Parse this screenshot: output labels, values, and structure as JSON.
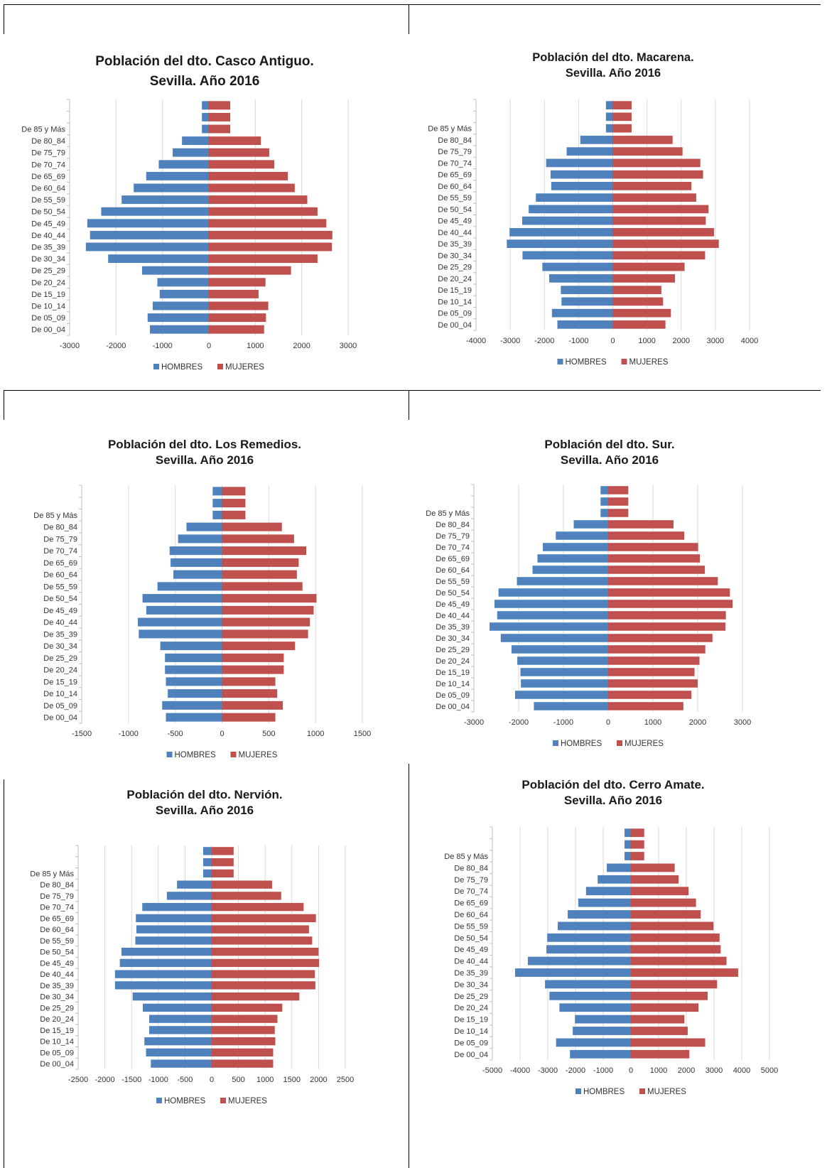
{
  "colors": {
    "hombres": "#4F81BD",
    "mujeres": "#C0504D",
    "grid": "#D9D9D9",
    "axis": "#BFBFBF"
  },
  "chart_data": [
    {
      "type": "bar",
      "orientation": "horizontal-diverging",
      "title_lines": [
        "Población del dto. Casco Antiguo.",
        "Sevilla. Año 2016"
      ],
      "categories": [
        "",
        "",
        "De 85 y Más",
        "De 80_84",
        "De 75_79",
        "De 70_74",
        "De 65_69",
        "De 60_64",
        "De 55_59",
        "De 50_54",
        "De 45_49",
        "De 40_44",
        "De 35_39",
        "De 30_34",
        "De 25_29",
        "De 20_24",
        "De 15_19",
        "De 10_14",
        "De 05_09",
        "De 00_04"
      ],
      "series": [
        {
          "name": "HOMBRES",
          "values": [
            -150,
            -150,
            -150,
            -580,
            -780,
            -1080,
            -1350,
            -1620,
            -1880,
            -2320,
            -2620,
            -2560,
            -2650,
            -2170,
            -1440,
            -1110,
            -1060,
            -1210,
            -1320,
            -1270
          ]
        },
        {
          "name": "MUJERES",
          "values": [
            460,
            460,
            460,
            1120,
            1300,
            1410,
            1700,
            1850,
            2120,
            2340,
            2530,
            2660,
            2650,
            2340,
            1770,
            1220,
            1070,
            1280,
            1230,
            1190
          ]
        }
      ],
      "xlim": [
        -3000,
        3000
      ],
      "xticks": [
        "-3000",
        "-2000",
        "-1000",
        "0",
        "1000",
        "2000",
        "3000"
      ],
      "legend": "bottom"
    },
    {
      "type": "bar",
      "orientation": "horizontal-diverging",
      "title_lines": [
        "Población del dto. Macarena.",
        "Sevilla. Año 2016"
      ],
      "categories": [
        "",
        "",
        "De 85 y Más",
        "De 80_84",
        "De 75_79",
        "De 70_74",
        "De 65_69",
        "De 60_64",
        "De 55_59",
        "De 50_54",
        "De 45_49",
        "De 40_44",
        "De 35_39",
        "De 30_34",
        "De 25_29",
        "De 20_24",
        "De 15_19",
        "De 10_14",
        "De 05_09",
        "De 00_04"
      ],
      "series": [
        {
          "name": "HOMBRES",
          "values": [
            -200,
            -200,
            -200,
            -950,
            -1350,
            -1950,
            -1820,
            -1800,
            -2250,
            -2460,
            -2650,
            -3020,
            -3100,
            -2640,
            -2060,
            -1860,
            -1520,
            -1500,
            -1780,
            -1620
          ]
        },
        {
          "name": "MUJERES",
          "values": [
            550,
            550,
            550,
            1750,
            2040,
            2560,
            2640,
            2300,
            2440,
            2800,
            2720,
            2960,
            3100,
            2700,
            2100,
            1820,
            1420,
            1470,
            1700,
            1540
          ]
        }
      ],
      "xlim": [
        -4000,
        4000
      ],
      "xticks": [
        "-4000",
        "-3000",
        "-2000",
        "-1000",
        "0",
        "1000",
        "2000",
        "3000",
        "4000"
      ],
      "legend": "bottom"
    },
    {
      "type": "bar",
      "orientation": "horizontal-diverging",
      "title_lines": [
        "Población del dto. Los Remedios.",
        "Sevilla. Año 2016"
      ],
      "categories": [
        "",
        "",
        "De 85 y Más",
        "De 80_84",
        "De 75_79",
        "De 70_74",
        "De 65_69",
        "De 60_64",
        "De 55_59",
        "De 50_54",
        "De 45_49",
        "De 40_44",
        "De 35_39",
        "De 30_34",
        "De 25_29",
        "De 20_24",
        "De 15_19",
        "De 10_14",
        "De 05_09",
        "De 00_04"
      ],
      "series": [
        {
          "name": "HOMBRES",
          "values": [
            -100,
            -100,
            -100,
            -380,
            -470,
            -560,
            -550,
            -520,
            -690,
            -850,
            -810,
            -900,
            -890,
            -660,
            -610,
            -610,
            -600,
            -580,
            -640,
            -600
          ]
        },
        {
          "name": "MUJERES",
          "values": [
            250,
            250,
            250,
            640,
            770,
            900,
            820,
            800,
            860,
            1010,
            980,
            940,
            920,
            780,
            660,
            660,
            570,
            590,
            650,
            570
          ]
        }
      ],
      "xlim": [
        -1500,
        1500
      ],
      "xticks": [
        "-1500",
        "-1000",
        "-500",
        "0",
        "500",
        "1000",
        "1500"
      ],
      "legend": "bottom"
    },
    {
      "type": "bar",
      "orientation": "horizontal-diverging",
      "title_lines": [
        "Población del dto. Sur.",
        "Sevilla. Año 2016"
      ],
      "categories": [
        "",
        "",
        "De 85 y Más",
        "De 80_84",
        "De 75_79",
        "De 70_74",
        "De 65_69",
        "De 60_64",
        "De 55_59",
        "De 50_54",
        "De 45_49",
        "De 40_44",
        "De 35_39",
        "De 30_34",
        "De 25_29",
        "De 20_24",
        "De 15_19",
        "De 10_14",
        "De 05_09",
        "De 00_04"
      ],
      "series": [
        {
          "name": "HOMBRES",
          "values": [
            -170,
            -170,
            -170,
            -770,
            -1170,
            -1460,
            -1580,
            -1690,
            -2040,
            -2450,
            -2540,
            -2480,
            -2650,
            -2400,
            -2160,
            -2030,
            -1960,
            -1950,
            -2080,
            -1660
          ]
        },
        {
          "name": "MUJERES",
          "values": [
            450,
            450,
            450,
            1460,
            1700,
            2010,
            2050,
            2160,
            2450,
            2720,
            2780,
            2630,
            2620,
            2330,
            2170,
            2040,
            1930,
            2000,
            1860,
            1680
          ]
        }
      ],
      "xlim": [
        -3000,
        3000
      ],
      "xticks": [
        "-3000",
        "-2000",
        "-1000",
        "0",
        "1000",
        "2000",
        "3000"
      ],
      "legend": "bottom"
    },
    {
      "type": "bar",
      "orientation": "horizontal-diverging",
      "title_lines": [
        "Población del dto. Nervión.",
        "Sevilla. Año 2016"
      ],
      "categories": [
        "",
        "",
        "De 85 y Más",
        "De 80_84",
        "De 75_79",
        "De 70_74",
        "De 65_69",
        "De 60_64",
        "De 55_59",
        "De 50_54",
        "De 45_49",
        "De 40_44",
        "De 35_39",
        "De 30_34",
        "De 25_29",
        "De 20_24",
        "De 15_19",
        "De 10_14",
        "De 05_09",
        "De 00_04"
      ],
      "series": [
        {
          "name": "HOMBRES",
          "values": [
            -160,
            -160,
            -160,
            -650,
            -840,
            -1300,
            -1420,
            -1410,
            -1430,
            -1690,
            -1720,
            -1810,
            -1810,
            -1480,
            -1290,
            -1170,
            -1170,
            -1260,
            -1230,
            -1140
          ]
        },
        {
          "name": "MUJERES",
          "values": [
            410,
            410,
            410,
            1130,
            1300,
            1720,
            1950,
            1820,
            1880,
            2000,
            2010,
            1930,
            1940,
            1640,
            1320,
            1230,
            1180,
            1190,
            1150,
            1150
          ]
        }
      ],
      "xlim": [
        -2500,
        2500
      ],
      "xticks": [
        "-2500",
        "-2000",
        "-1500",
        "-1000",
        "-500",
        "0",
        "500",
        "1000",
        "1500",
        "2000",
        "2500"
      ],
      "legend": "bottom"
    },
    {
      "type": "bar",
      "orientation": "horizontal-diverging",
      "title_lines": [
        "Población del dto. Cerro Amate.",
        "Sevilla. Año 2016"
      ],
      "categories": [
        "",
        "",
        "De 85 y Más",
        "De 80_84",
        "De 75_79",
        "De 70_74",
        "De 65_69",
        "De 60_64",
        "De 55_59",
        "De 50_54",
        "De 45_49",
        "De 40_44",
        "De 35_39",
        "De 30_34",
        "De 25_29",
        "De 20_24",
        "De 15_19",
        "De 10_14",
        "De 05_09",
        "De 00_04"
      ],
      "series": [
        {
          "name": "HOMBRES",
          "values": [
            -230,
            -230,
            -230,
            -870,
            -1200,
            -1620,
            -1900,
            -2280,
            -2640,
            -3020,
            -3050,
            -3720,
            -4180,
            -3100,
            -2940,
            -2580,
            -2020,
            -2100,
            -2700,
            -2200
          ]
        },
        {
          "name": "MUJERES",
          "values": [
            480,
            480,
            480,
            1580,
            1720,
            2080,
            2350,
            2520,
            2980,
            3200,
            3240,
            3450,
            3870,
            3110,
            2770,
            2440,
            1930,
            2050,
            2680,
            2110
          ]
        }
      ],
      "xlim": [
        -5000,
        5000
      ],
      "xticks": [
        "-5000",
        "-4000",
        "-3000",
        "-2000",
        "-1000",
        "0",
        "1000",
        "2000",
        "3000",
        "4000",
        "5000"
      ],
      "legend": "bottom"
    }
  ]
}
